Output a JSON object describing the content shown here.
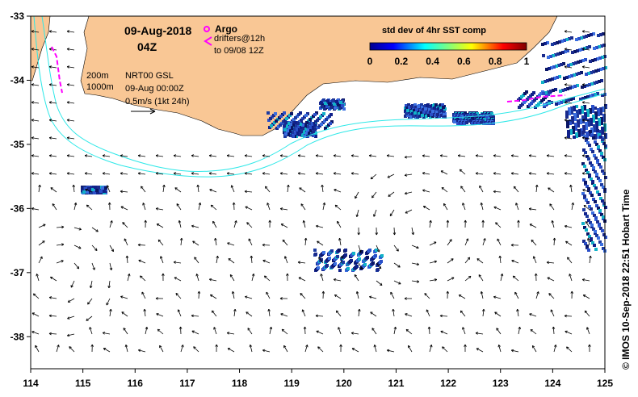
{
  "map": {
    "date": "09-Aug-2018",
    "time": "04Z",
    "lon_ticks": [
      "114",
      "115",
      "116",
      "117",
      "118",
      "119",
      "120",
      "121",
      "122",
      "123",
      "124",
      "125"
    ],
    "lat_ticks": [
      "-33",
      "-34",
      "-35",
      "-36",
      "-37",
      "-38"
    ],
    "lon_range": [
      114,
      125
    ],
    "lat_range": [
      -38.5,
      -33
    ],
    "colors": {
      "land": "#f9c795",
      "current_contour": "#2ee8e8",
      "drifter": "#ff00ff",
      "arrow": "#000000"
    }
  },
  "legend": {
    "argo_label": "Argo",
    "drifters_label": "drifters@12h",
    "drifters_to": "to 09/08 12Z",
    "contour_200": "200m",
    "contour_1000": "1000m",
    "product": "NRT00 GSL",
    "product_time": "09-Aug 00:00Z",
    "scale": "0.5m/s (1kt 24h)"
  },
  "colorbar": {
    "title": "std dev of 4hr SST comp",
    "ticks": [
      "0",
      "0.2",
      "0.4",
      "0.6",
      "0.8",
      "1"
    ]
  },
  "credit": "© IMOS 10-Sep-2018 22:51 Hobart Time"
}
